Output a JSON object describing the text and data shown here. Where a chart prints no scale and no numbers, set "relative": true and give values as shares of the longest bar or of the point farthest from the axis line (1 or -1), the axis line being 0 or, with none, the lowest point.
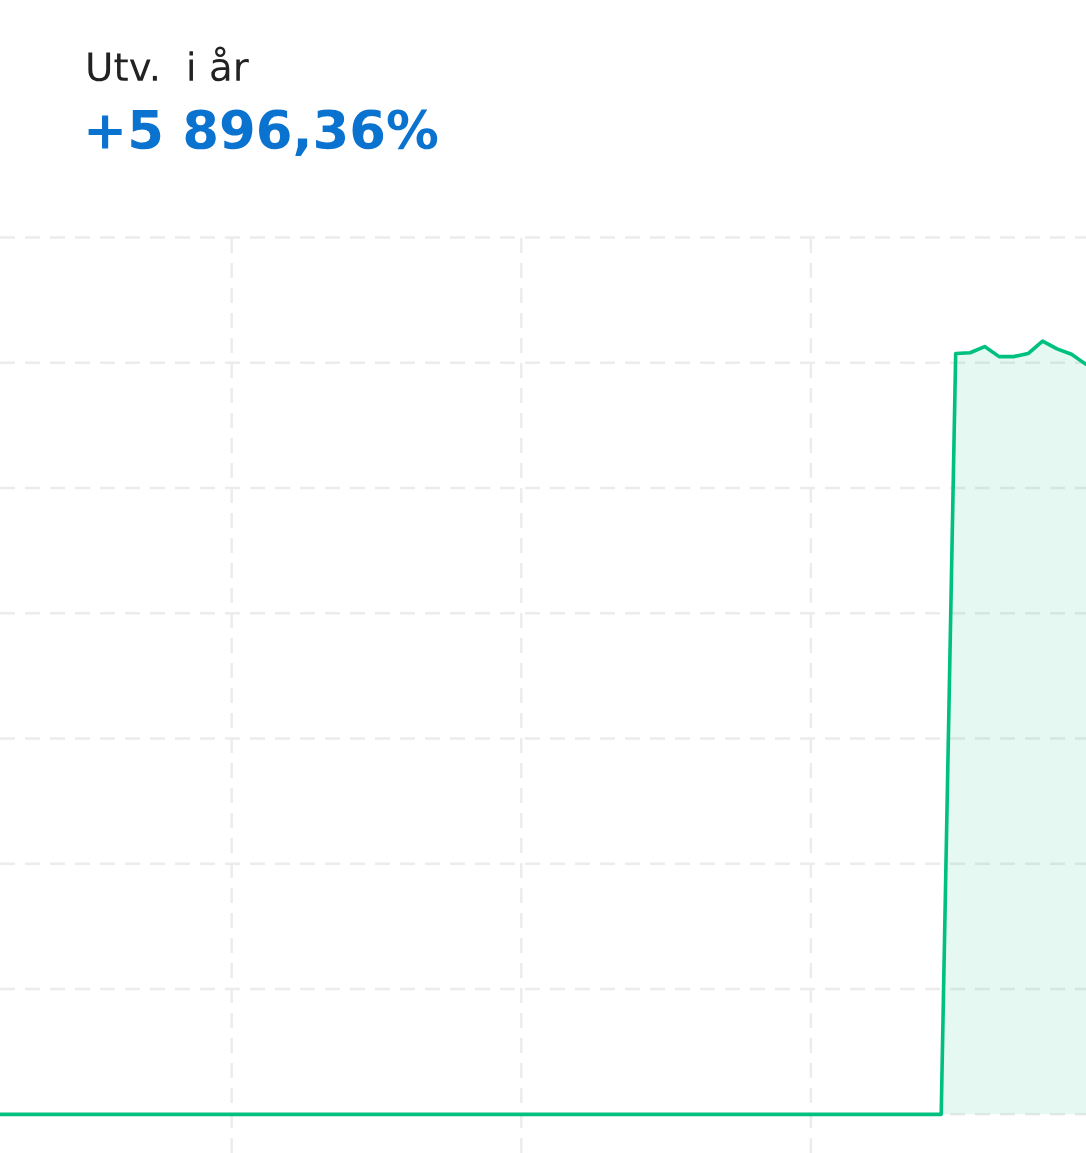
{
  "chart_data": {
    "type": "area",
    "title": "Utv.  i år",
    "subtitle": "+5 896,36%",
    "relative": true,
    "grid": true,
    "categories": [
      null,
      null,
      null,
      null,
      null,
      null,
      null,
      null,
      null,
      null,
      null,
      null,
      null,
      null,
      null,
      null,
      null,
      null,
      null,
      null,
      null,
      null,
      null,
      null,
      null,
      null,
      null,
      null,
      null,
      null,
      null,
      null,
      null,
      null,
      null,
      null,
      null,
      null,
      null,
      null,
      null,
      null,
      null,
      null,
      null,
      null,
      null,
      null,
      null,
      null,
      null,
      null,
      null,
      null,
      null,
      null,
      null,
      null,
      null,
      null,
      null,
      null,
      null,
      null,
      null,
      null,
      null,
      null,
      null,
      null,
      null,
      null,
      null,
      null,
      null,
      null
    ],
    "series": [
      {
        "color": "#00c07f",
        "values": [
          0,
          0,
          0,
          0,
          0,
          0,
          0,
          0,
          0,
          0,
          0,
          0,
          0,
          0,
          0,
          0,
          0,
          0,
          0,
          0,
          0,
          0,
          0,
          0,
          0,
          0,
          0,
          0,
          0,
          0,
          0,
          0,
          0,
          0,
          0,
          0,
          0,
          0,
          0,
          0,
          0,
          0,
          0,
          0,
          0,
          0,
          0,
          0,
          0,
          0,
          0,
          0,
          0,
          0,
          0,
          0,
          0,
          0,
          0,
          0,
          0,
          0,
          0,
          0,
          0,
          0,
          0.984,
          0.985,
          0.993,
          0.98,
          0.98,
          0.984,
          1.0,
          0.99,
          0.983,
          0.97
        ]
      }
    ]
  }
}
